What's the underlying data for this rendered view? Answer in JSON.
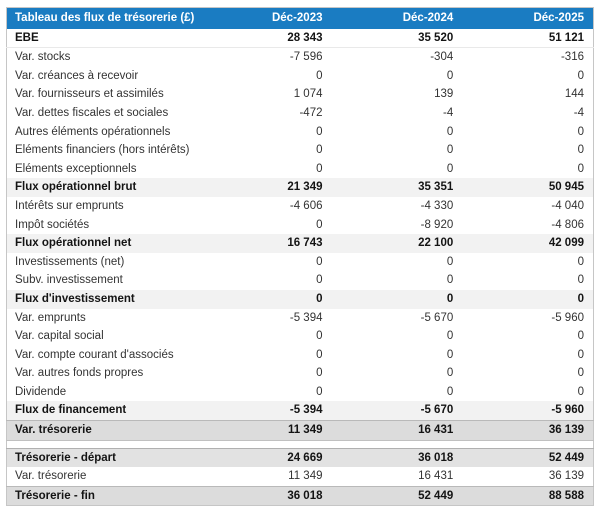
{
  "table": {
    "title": "Tableau des flux de trésorerie (£)",
    "columns": [
      "Déc-2023",
      "Déc-2024",
      "Déc-2025"
    ],
    "rows": [
      {
        "label": "EBE",
        "values": [
          "28 343",
          "35 520",
          "51 121"
        ],
        "style": "bold"
      },
      {
        "label": "Var. stocks",
        "values": [
          "-7 596",
          "-304",
          "-316"
        ],
        "style": "plain"
      },
      {
        "label": "Var. créances à recevoir",
        "values": [
          "0",
          "0",
          "0"
        ],
        "style": "plain"
      },
      {
        "label": "Var. fournisseurs et assimilés",
        "values": [
          "1 074",
          "139",
          "144"
        ],
        "style": "plain"
      },
      {
        "label": "Var. dettes fiscales et sociales",
        "values": [
          "-472",
          "-4",
          "-4"
        ],
        "style": "plain"
      },
      {
        "label": "Autres éléments opérationnels",
        "values": [
          "0",
          "0",
          "0"
        ],
        "style": "plain"
      },
      {
        "label": "Eléments financiers (hors intérêts)",
        "values": [
          "0",
          "0",
          "0"
        ],
        "style": "plain"
      },
      {
        "label": "Eléments exceptionnels",
        "values": [
          "0",
          "0",
          "0"
        ],
        "style": "plain"
      },
      {
        "label": "Flux opérationnel brut",
        "values": [
          "21 349",
          "35 351",
          "50 945"
        ],
        "style": "subtotal"
      },
      {
        "label": "Intérêts sur emprunts",
        "values": [
          "-4 606",
          "-4 330",
          "-4 040"
        ],
        "style": "plain"
      },
      {
        "label": "Impôt sociétés",
        "values": [
          "0",
          "-8 920",
          "-4 806"
        ],
        "style": "plain"
      },
      {
        "label": "Flux opérationnel net",
        "values": [
          "16 743",
          "22 100",
          "42 099"
        ],
        "style": "subtotal"
      },
      {
        "label": "Investissements (net)",
        "values": [
          "0",
          "0",
          "0"
        ],
        "style": "plain"
      },
      {
        "label": "Subv. investissement",
        "values": [
          "0",
          "0",
          "0"
        ],
        "style": "plain"
      },
      {
        "label": "Flux d'investissement",
        "values": [
          "0",
          "0",
          "0"
        ],
        "style": "subtotal"
      },
      {
        "label": "Var. emprunts",
        "values": [
          "-5 394",
          "-5 670",
          "-5 960"
        ],
        "style": "plain"
      },
      {
        "label": "Var. capital social",
        "values": [
          "0",
          "0",
          "0"
        ],
        "style": "plain"
      },
      {
        "label": "Var. compte courant d'associés",
        "values": [
          "0",
          "0",
          "0"
        ],
        "style": "plain"
      },
      {
        "label": "Var. autres fonds propres",
        "values": [
          "0",
          "0",
          "0"
        ],
        "style": "plain"
      },
      {
        "label": "Dividende",
        "values": [
          "0",
          "0",
          "0"
        ],
        "style": "plain"
      },
      {
        "label": "Flux de financement",
        "values": [
          "-5 394",
          "-5 670",
          "-5 960"
        ],
        "style": "subtotal"
      },
      {
        "label": "Var. trésorerie",
        "values": [
          "11 349",
          "16 431",
          "36 139"
        ],
        "style": "total"
      },
      {
        "label": "Trésorerie - départ",
        "values": [
          "24 669",
          "36 018",
          "52 449"
        ],
        "style": "start",
        "gap_before": true
      },
      {
        "label": "Var. trésorerie",
        "values": [
          "11 349",
          "16 431",
          "36 139"
        ],
        "style": "plain"
      },
      {
        "label": "Trésorerie - fin",
        "values": [
          "36 018",
          "52 449",
          "88 588"
        ],
        "style": "total"
      }
    ]
  },
  "colors": {
    "header_bg": "#1a7cc2",
    "header_text": "#ffffff",
    "subtotal_bg": "#f2f2f2",
    "total_bg": "#dcdcdc",
    "start_bg": "#e2e2e2"
  }
}
